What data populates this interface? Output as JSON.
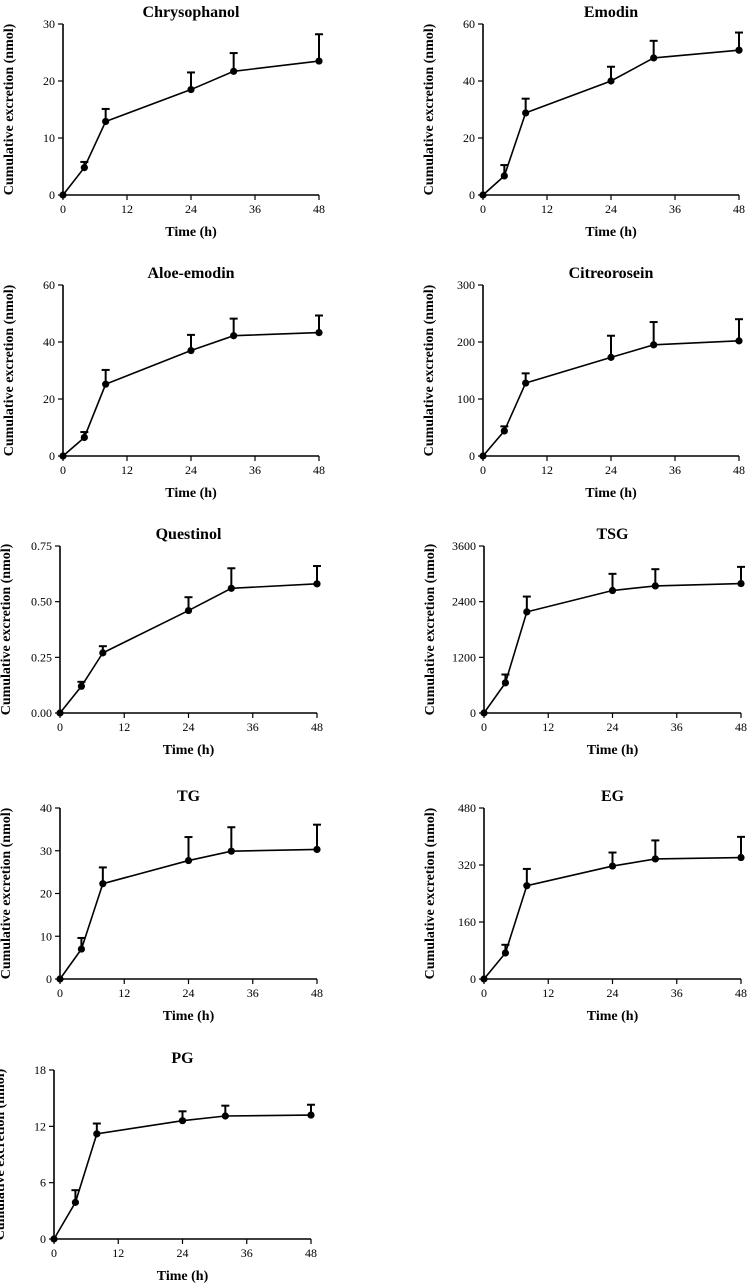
{
  "chart_data": [
    {
      "type": "line",
      "title": "Chrysophanol",
      "xlabel": "Time (h)",
      "ylabel": "Cumulative excretion (nmol)",
      "x": [
        0,
        4,
        8,
        24,
        32,
        48
      ],
      "y": [
        0,
        4.8,
        12.9,
        18.5,
        21.7,
        23.5
      ],
      "err": [
        0,
        1.0,
        2.2,
        3.0,
        3.2,
        4.7
      ],
      "xticks": [
        0,
        12,
        24,
        36,
        48
      ],
      "xtick_labels": [
        "0",
        "12",
        "24",
        "36",
        "48"
      ],
      "yticks": [
        0,
        10,
        20,
        30
      ],
      "ytick_labels": [
        "0",
        "10",
        "20",
        "30"
      ],
      "xlim": [
        0,
        48
      ],
      "ylim": [
        0,
        30
      ]
    },
    {
      "type": "line",
      "title": "Emodin",
      "xlabel": "Time (h)",
      "ylabel": "Cumulative excretion (nmol)",
      "x": [
        0,
        4,
        8,
        24,
        32,
        48
      ],
      "y": [
        0,
        6.7,
        28.8,
        40,
        48.1,
        50.8
      ],
      "err": [
        0,
        3.8,
        5,
        5,
        6,
        6.2
      ],
      "xticks": [
        0,
        12,
        24,
        36,
        48
      ],
      "xtick_labels": [
        "0",
        "12",
        "24",
        "36",
        "48"
      ],
      "yticks": [
        0,
        20,
        40,
        60
      ],
      "ytick_labels": [
        "0",
        "20",
        "40",
        "60"
      ],
      "xlim": [
        0,
        48
      ],
      "ylim": [
        0,
        60
      ]
    },
    {
      "type": "line",
      "title": "Aloe-emodin",
      "xlabel": "Time (h)",
      "ylabel": "Cumulative excretion (nmol)",
      "x": [
        0,
        4,
        8,
        24,
        32,
        48
      ],
      "y": [
        0,
        6.5,
        25.2,
        37,
        42.2,
        43.3
      ],
      "err": [
        0,
        1.9,
        5,
        5.5,
        6,
        6
      ],
      "xticks": [
        0,
        12,
        24,
        36,
        48
      ],
      "xtick_labels": [
        "0",
        "12",
        "24",
        "36",
        "48"
      ],
      "yticks": [
        0,
        20,
        40,
        60
      ],
      "ytick_labels": [
        "0",
        "20",
        "40",
        "60"
      ],
      "xlim": [
        0,
        48
      ],
      "ylim": [
        0,
        60
      ]
    },
    {
      "type": "line",
      "title": "Citreorosein",
      "xlabel": "Time (h)",
      "ylabel": "Cumulative excretion (nmol)",
      "x": [
        0,
        4,
        8,
        24,
        32,
        48
      ],
      "y": [
        0,
        44,
        128,
        173,
        195,
        202
      ],
      "err": [
        0,
        8,
        17,
        38,
        40,
        38
      ],
      "xticks": [
        0,
        12,
        24,
        36,
        48
      ],
      "xtick_labels": [
        "0",
        "12",
        "24",
        "36",
        "48"
      ],
      "yticks": [
        0,
        100,
        200,
        300
      ],
      "ytick_labels": [
        "0",
        "100",
        "200",
        "300"
      ],
      "xlim": [
        0,
        48
      ],
      "ylim": [
        0,
        300
      ]
    },
    {
      "type": "line",
      "title": "Questinol",
      "xlabel": "Time (h)",
      "ylabel": "Cumulative excretion (nmol)",
      "x": [
        0,
        4,
        8,
        24,
        32,
        48
      ],
      "y": [
        0,
        0.12,
        0.27,
        0.46,
        0.56,
        0.58
      ],
      "err": [
        0,
        0.02,
        0.03,
        0.06,
        0.09,
        0.08
      ],
      "xticks": [
        0,
        12,
        24,
        36,
        48
      ],
      "xtick_labels": [
        "0",
        "12",
        "24",
        "36",
        "48"
      ],
      "yticks": [
        0,
        0.25,
        0.5,
        0.75
      ],
      "ytick_labels": [
        "0.00",
        "0.25",
        "0.50",
        "0.75"
      ],
      "xlim": [
        0,
        48
      ],
      "ylim": [
        0,
        0.75
      ]
    },
    {
      "type": "line",
      "title": "TSG",
      "xlabel": "Time (h)",
      "ylabel": "Cumulative excretion (nmol)",
      "x": [
        0,
        4,
        8,
        24,
        32,
        48
      ],
      "y": [
        0,
        650,
        2180,
        2640,
        2740,
        2790
      ],
      "err": [
        0,
        180,
        330,
        360,
        360,
        360
      ],
      "xticks": [
        0,
        12,
        24,
        36,
        48
      ],
      "xtick_labels": [
        "0",
        "12",
        "24",
        "36",
        "48"
      ],
      "yticks": [
        0,
        1200,
        2400,
        3600
      ],
      "ytick_labels": [
        "0",
        "1200",
        "2400",
        "3600"
      ],
      "xlim": [
        0,
        48
      ],
      "ylim": [
        0,
        3600
      ]
    },
    {
      "type": "line",
      "title": "TG",
      "xlabel": "Time (h)",
      "ylabel": "Cumulative excretion (nmol)",
      "x": [
        0,
        4,
        8,
        24,
        32,
        48
      ],
      "y": [
        0,
        7,
        22.3,
        27.7,
        29.9,
        30.3
      ],
      "err": [
        0,
        2.6,
        3.8,
        5.5,
        5.6,
        5.8
      ],
      "xticks": [
        0,
        12,
        24,
        36,
        48
      ],
      "xtick_labels": [
        "0",
        "12",
        "24",
        "36",
        "48"
      ],
      "yticks": [
        0,
        10,
        20,
        30,
        40
      ],
      "ytick_labels": [
        "0",
        "10",
        "20",
        "30",
        "40"
      ],
      "xlim": [
        0,
        48
      ],
      "ylim": [
        0,
        40
      ]
    },
    {
      "type": "line",
      "title": "EG",
      "xlabel": "Time (h)",
      "ylabel": "Cumulative excretion (nmol)",
      "x": [
        0,
        4,
        8,
        24,
        32,
        48
      ],
      "y": [
        0,
        73,
        262,
        317,
        337,
        341
      ],
      "err": [
        0,
        23,
        47,
        38,
        52,
        58
      ],
      "xticks": [
        0,
        12,
        24,
        36,
        48
      ],
      "xtick_labels": [
        "0",
        "12",
        "24",
        "36",
        "48"
      ],
      "yticks": [
        0,
        160,
        320,
        480
      ],
      "ytick_labels": [
        "0",
        "160",
        "320",
        "480"
      ],
      "xlim": [
        0,
        48
      ],
      "ylim": [
        0,
        480
      ]
    },
    {
      "type": "line",
      "title": "PG",
      "xlabel": "Time (h)",
      "ylabel": "Cumulative excretion (nmol)",
      "x": [
        0,
        4,
        8,
        24,
        32,
        48
      ],
      "y": [
        0,
        3.9,
        11.2,
        12.6,
        13.1,
        13.2
      ],
      "err": [
        0,
        1.3,
        1.1,
        1,
        1.1,
        1.1
      ],
      "xticks": [
        0,
        12,
        24,
        36,
        48
      ],
      "xtick_labels": [
        "0",
        "12",
        "24",
        "36",
        "48"
      ],
      "yticks": [
        0,
        6,
        12,
        18
      ],
      "ytick_labels": [
        "0",
        "6",
        "12",
        "18"
      ],
      "xlim": [
        0,
        48
      ],
      "ylim": [
        0,
        18
      ]
    }
  ]
}
